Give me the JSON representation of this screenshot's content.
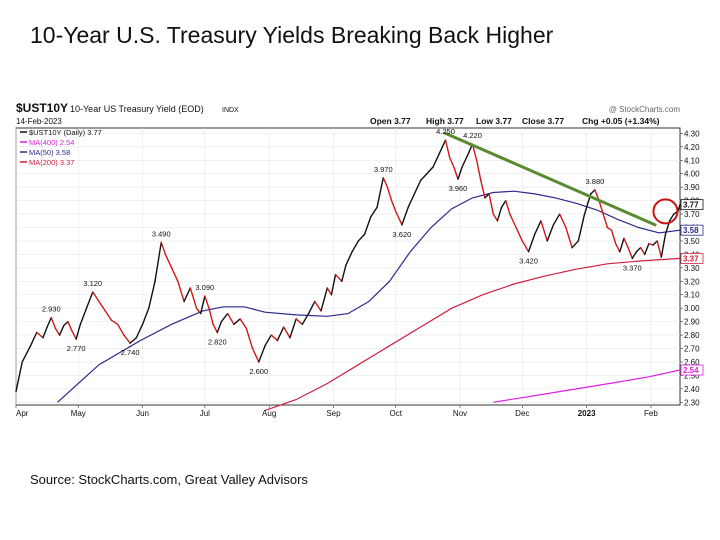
{
  "slide": {
    "title": "10-Year U.S. Treasury Yields Breaking Back Higher",
    "source": "Source: StockCharts.com, Great Valley Advisors"
  },
  "chart_data": {
    "type": "line",
    "symbol": "$UST10Y",
    "name": "10-Year US Treasury Yield (EOD)",
    "exchange": "INDX",
    "date": "14-Feb-2023",
    "watermark": "@ StockCharts.com",
    "ohlc": {
      "open": "Open 3.77",
      "high": "High 3.77",
      "low": "Low 3.77",
      "close": "Close 3.77",
      "change": "Chg +0.05 (+1.34%)"
    },
    "legend": [
      {
        "label": "$UST10Y (Daily) 3.77",
        "color": "#111111"
      },
      {
        "label": "MA(400) 2.54",
        "color": "#e020e0"
      },
      {
        "label": "MA(50) 3.58",
        "color": "#2a2a8c"
      },
      {
        "label": "MA(200) 3.37",
        "color": "#d02040"
      }
    ],
    "x_range": [
      0,
      320
    ],
    "ylim": [
      2.28,
      4.34
    ],
    "x_tick_labels": [
      {
        "label": "Apr",
        "x": 0
      },
      {
        "label": "May",
        "x": 30
      },
      {
        "label": "Jun",
        "x": 61
      },
      {
        "label": "Jul",
        "x": 91
      },
      {
        "label": "Aug",
        "x": 122
      },
      {
        "label": "Sep",
        "x": 153
      },
      {
        "label": "Oct",
        "x": 183
      },
      {
        "label": "Nov",
        "x": 214
      },
      {
        "label": "Dec",
        "x": 244
      },
      {
        "label": "2023",
        "x": 275
      },
      {
        "label": "Feb",
        "x": 306
      }
    ],
    "y_ticks": [
      "4.30",
      "4.20",
      "4.10",
      "4.00",
      "3.90",
      "3.80",
      "3.70",
      "3.60",
      "3.50",
      "3.40",
      "3.30",
      "3.20",
      "3.10",
      "3.00",
      "2.90",
      "2.80",
      "2.70",
      "2.60",
      "2.50",
      "2.40",
      "2.30"
    ],
    "price": {
      "name": "$UST10Y",
      "points": [
        [
          0,
          2.38
        ],
        [
          3,
          2.6
        ],
        [
          7,
          2.72
        ],
        [
          10,
          2.82
        ],
        [
          13,
          2.78
        ],
        [
          15,
          2.86
        ],
        [
          17,
          2.93
        ],
        [
          19,
          2.85
        ],
        [
          21,
          2.8
        ],
        [
          23,
          2.87
        ],
        [
          25,
          2.9
        ],
        [
          27,
          2.83
        ],
        [
          29,
          2.77
        ],
        [
          31,
          2.88
        ],
        [
          34,
          3.0
        ],
        [
          37,
          3.12
        ],
        [
          40,
          3.05
        ],
        [
          43,
          2.98
        ],
        [
          46,
          2.91
        ],
        [
          49,
          2.88
        ],
        [
          52,
          2.8
        ],
        [
          55,
          2.74
        ],
        [
          58,
          2.78
        ],
        [
          61,
          2.88
        ],
        [
          64,
          3.0
        ],
        [
          67,
          3.2
        ],
        [
          70,
          3.49
        ],
        [
          72,
          3.4
        ],
        [
          75,
          3.3
        ],
        [
          78,
          3.2
        ],
        [
          81,
          3.05
        ],
        [
          84,
          3.15
        ],
        [
          87,
          3.0
        ],
        [
          89,
          2.96
        ],
        [
          91,
          3.09
        ],
        [
          93,
          3.0
        ],
        [
          95,
          2.88
        ],
        [
          97,
          2.82
        ],
        [
          99,
          2.9
        ],
        [
          102,
          2.96
        ],
        [
          105,
          2.88
        ],
        [
          108,
          2.92
        ],
        [
          111,
          2.85
        ],
        [
          114,
          2.7
        ],
        [
          117,
          2.6
        ],
        [
          120,
          2.72
        ],
        [
          123,
          2.8
        ],
        [
          126,
          2.76
        ],
        [
          129,
          2.86
        ],
        [
          132,
          2.78
        ],
        [
          135,
          2.92
        ],
        [
          138,
          2.88
        ],
        [
          141,
          2.96
        ],
        [
          144,
          3.05
        ],
        [
          147,
          2.98
        ],
        [
          150,
          3.15
        ],
        [
          152,
          3.1
        ],
        [
          154,
          3.25
        ],
        [
          157,
          3.2
        ],
        [
          159,
          3.32
        ],
        [
          162,
          3.42
        ],
        [
          165,
          3.5
        ],
        [
          168,
          3.55
        ],
        [
          171,
          3.68
        ],
        [
          174,
          3.75
        ],
        [
          177,
          3.97
        ],
        [
          179,
          3.9
        ],
        [
          181,
          3.8
        ],
        [
          183,
          3.72
        ],
        [
          186,
          3.62
        ],
        [
          189,
          3.75
        ],
        [
          192,
          3.85
        ],
        [
          195,
          3.95
        ],
        [
          198,
          4.0
        ],
        [
          201,
          4.05
        ],
        [
          204,
          4.15
        ],
        [
          207,
          4.25
        ],
        [
          209,
          4.12
        ],
        [
          211,
          4.05
        ],
        [
          213,
          3.96
        ],
        [
          215,
          4.05
        ],
        [
          218,
          4.15
        ],
        [
          220,
          4.22
        ],
        [
          222,
          4.1
        ],
        [
          224,
          3.95
        ],
        [
          226,
          3.82
        ],
        [
          228,
          3.85
        ],
        [
          230,
          3.7
        ],
        [
          232,
          3.65
        ],
        [
          234,
          3.75
        ],
        [
          236,
          3.8
        ],
        [
          238,
          3.7
        ],
        [
          241,
          3.6
        ],
        [
          244,
          3.5
        ],
        [
          247,
          3.42
        ],
        [
          250,
          3.55
        ],
        [
          253,
          3.65
        ],
        [
          256,
          3.5
        ],
        [
          259,
          3.62
        ],
        [
          262,
          3.7
        ],
        [
          265,
          3.6
        ],
        [
          268,
          3.45
        ],
        [
          271,
          3.5
        ],
        [
          274,
          3.7
        ],
        [
          277,
          3.85
        ],
        [
          279,
          3.88
        ],
        [
          281,
          3.8
        ],
        [
          283,
          3.7
        ],
        [
          285,
          3.6
        ],
        [
          287,
          3.58
        ],
        [
          289,
          3.48
        ],
        [
          291,
          3.42
        ],
        [
          293,
          3.52
        ],
        [
          295,
          3.45
        ],
        [
          297,
          3.37
        ],
        [
          299,
          3.42
        ],
        [
          301,
          3.45
        ],
        [
          303,
          3.4
        ],
        [
          305,
          3.48
        ],
        [
          307,
          3.47
        ],
        [
          309,
          3.5
        ],
        [
          311,
          3.38
        ],
        [
          313,
          3.55
        ],
        [
          315,
          3.65
        ],
        [
          317,
          3.7
        ],
        [
          319,
          3.72
        ],
        [
          320,
          3.77
        ]
      ]
    },
    "ma50": {
      "name": "MA(50)",
      "points": [
        [
          20,
          2.3
        ],
        [
          40,
          2.58
        ],
        [
          60,
          2.76
        ],
        [
          75,
          2.88
        ],
        [
          90,
          2.98
        ],
        [
          100,
          3.01
        ],
        [
          110,
          3.01
        ],
        [
          120,
          2.97
        ],
        [
          135,
          2.95
        ],
        [
          150,
          2.94
        ],
        [
          160,
          2.96
        ],
        [
          170,
          3.05
        ],
        [
          180,
          3.2
        ],
        [
          190,
          3.42
        ],
        [
          200,
          3.6
        ],
        [
          210,
          3.74
        ],
        [
          220,
          3.82
        ],
        [
          230,
          3.86
        ],
        [
          240,
          3.87
        ],
        [
          250,
          3.85
        ],
        [
          260,
          3.82
        ],
        [
          270,
          3.78
        ],
        [
          280,
          3.73
        ],
        [
          290,
          3.66
        ],
        [
          300,
          3.6
        ],
        [
          310,
          3.56
        ],
        [
          320,
          3.58
        ]
      ]
    },
    "ma200": {
      "name": "MA(200)",
      "points": [
        [
          120,
          2.24
        ],
        [
          135,
          2.32
        ],
        [
          150,
          2.44
        ],
        [
          165,
          2.58
        ],
        [
          180,
          2.72
        ],
        [
          195,
          2.86
        ],
        [
          210,
          3.0
        ],
        [
          225,
          3.1
        ],
        [
          240,
          3.18
        ],
        [
          255,
          3.24
        ],
        [
          270,
          3.29
        ],
        [
          285,
          3.33
        ],
        [
          300,
          3.35
        ],
        [
          320,
          3.37
        ]
      ]
    },
    "ma400": {
      "name": "MA(400)",
      "points": [
        [
          230,
          2.3
        ],
        [
          250,
          2.35
        ],
        [
          270,
          2.4
        ],
        [
          290,
          2.45
        ],
        [
          305,
          2.49
        ],
        [
          320,
          2.54
        ]
      ]
    },
    "trendline": {
      "from": [
        207,
        4.3
      ],
      "to": [
        308,
        3.62
      ],
      "color": "#5a8a32"
    },
    "highlight_circle": {
      "x": 313,
      "y": 3.72
    },
    "annotations": [
      {
        "label": "2.930",
        "x": 17,
        "y": 2.93
      },
      {
        "label": "2.770",
        "x": 29,
        "y": 2.77
      },
      {
        "label": "3.120",
        "x": 37,
        "y": 3.12
      },
      {
        "label": "2.740",
        "x": 55,
        "y": 2.74
      },
      {
        "label": "3.490",
        "x": 70,
        "y": 3.49
      },
      {
        "label": "3.090",
        "x": 91,
        "y": 3.09
      },
      {
        "label": "2.820",
        "x": 97,
        "y": 2.82
      },
      {
        "label": "2.600",
        "x": 117,
        "y": 2.6
      },
      {
        "label": "3.970",
        "x": 177,
        "y": 3.97
      },
      {
        "label": "3.620",
        "x": 186,
        "y": 3.62
      },
      {
        "label": "4.250",
        "x": 207,
        "y": 4.25
      },
      {
        "label": "3.960",
        "x": 213,
        "y": 3.96
      },
      {
        "label": "4.220",
        "x": 220,
        "y": 4.22
      },
      {
        "label": "3.420",
        "x": 247,
        "y": 3.42
      },
      {
        "label": "3.880",
        "x": 279,
        "y": 3.88
      },
      {
        "label": "3.370",
        "x": 297,
        "y": 3.37
      }
    ],
    "right_markers": [
      {
        "label": "3.77",
        "value": 3.77,
        "color": "#111111"
      },
      {
        "label": "3.58",
        "value": 3.58,
        "color": "#2a2a8c"
      },
      {
        "label": "3.37",
        "value": 3.37,
        "color": "#d02040"
      },
      {
        "label": "2.54",
        "value": 2.54,
        "color": "#e020e0"
      }
    ]
  }
}
